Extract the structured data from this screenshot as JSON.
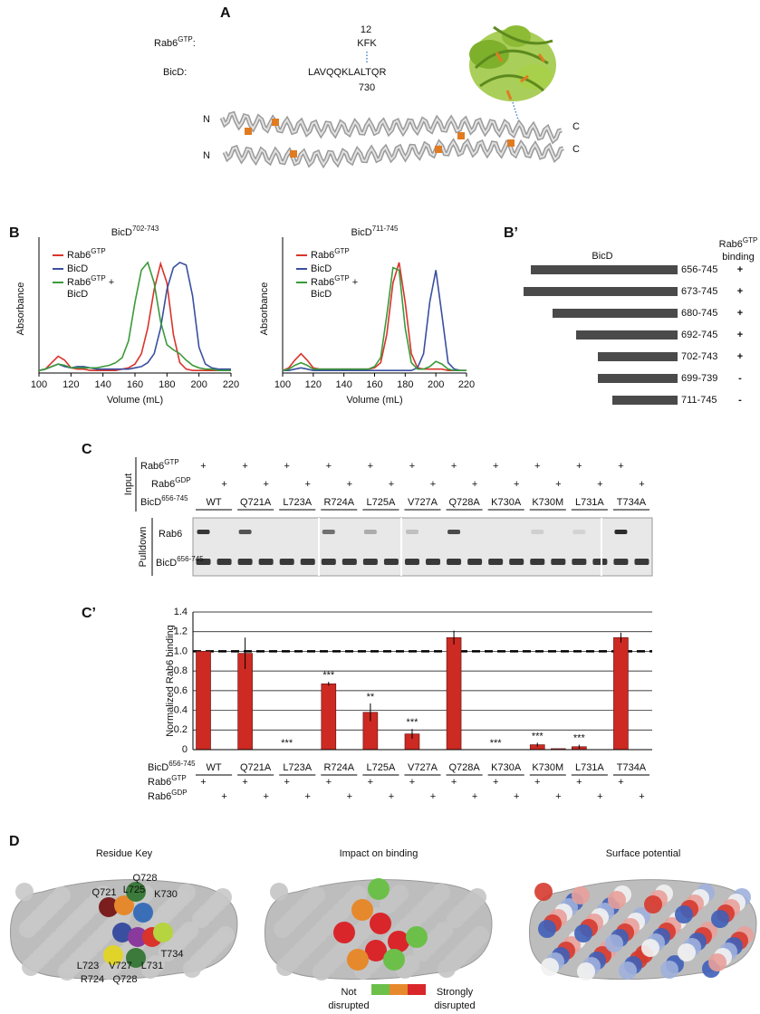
{
  "panel_a": {
    "label": "A",
    "rab6": {
      "text": "Rab6",
      "sup": "GTP"
    },
    "colon": ":",
    "rab6_residue": 12,
    "rab6_seq": "KFK",
    "bicd": "BicD:",
    "bicd_seq": "LAVQQKLALTQR",
    "bicd_residue": 730,
    "termini": [
      "N",
      "N",
      "C",
      "C"
    ]
  },
  "panel_b": {
    "label": "B"
  },
  "chart_data": [
    {
      "type": "line",
      "title": {
        "text": "BicD",
        "sup": "702-743"
      },
      "xlabel": "Volume (mL)",
      "ylabel": "Absorbance",
      "x": [
        100,
        104,
        108,
        112,
        116,
        120,
        124,
        128,
        132,
        136,
        140,
        144,
        148,
        152,
        156,
        160,
        164,
        168,
        172,
        176,
        180,
        184,
        188,
        192,
        196,
        200,
        204,
        208,
        212,
        216,
        220
      ],
      "xlim": [
        100,
        220
      ],
      "xticks": [
        100,
        120,
        140,
        160,
        180,
        200,
        220
      ],
      "ylim": [
        0,
        1
      ],
      "series": [
        {
          "name": {
            "text": "Rab6",
            "sup": "GTP"
          },
          "color": "#d9342b",
          "values": [
            0.02,
            0.03,
            0.08,
            0.13,
            0.1,
            0.04,
            0.03,
            0.03,
            0.02,
            0.02,
            0.02,
            0.02,
            0.02,
            0.03,
            0.04,
            0.07,
            0.15,
            0.35,
            0.65,
            0.85,
            0.7,
            0.3,
            0.08,
            0.03,
            0.02,
            0.02,
            0.02,
            0.02,
            0.02,
            0.02,
            0.02
          ]
        },
        {
          "name": {
            "text": "BicD"
          },
          "color": "#3a4fa0",
          "values": [
            0.02,
            0.03,
            0.05,
            0.07,
            0.05,
            0.04,
            0.05,
            0.05,
            0.04,
            0.03,
            0.03,
            0.03,
            0.03,
            0.03,
            0.03,
            0.04,
            0.05,
            0.08,
            0.15,
            0.35,
            0.65,
            0.82,
            0.86,
            0.84,
            0.6,
            0.2,
            0.07,
            0.04,
            0.03,
            0.03,
            0.03
          ]
        },
        {
          "name": {
            "text": "Rab6",
            "sup": "GTP",
            "suffix": " +",
            "line2": "BicD"
          },
          "color": "#3b9a3b",
          "values": [
            0.02,
            0.03,
            0.05,
            0.07,
            0.06,
            0.04,
            0.04,
            0.04,
            0.04,
            0.04,
            0.05,
            0.06,
            0.08,
            0.12,
            0.25,
            0.55,
            0.8,
            0.86,
            0.7,
            0.4,
            0.22,
            0.18,
            0.15,
            0.1,
            0.06,
            0.04,
            0.03,
            0.03,
            0.02,
            0.02,
            0.02
          ]
        }
      ]
    },
    {
      "type": "line",
      "title": {
        "text": "BicD",
        "sup": "711-745"
      },
      "xlabel": "Volume (mL)",
      "ylabel": "Absorbance",
      "x": [
        100,
        104,
        108,
        112,
        116,
        120,
        124,
        128,
        132,
        136,
        140,
        144,
        148,
        152,
        156,
        160,
        164,
        168,
        172,
        176,
        180,
        184,
        188,
        192,
        196,
        200,
        204,
        208,
        212,
        216,
        220
      ],
      "xlim": [
        100,
        220
      ],
      "xticks": [
        100,
        120,
        140,
        160,
        180,
        200,
        220
      ],
      "ylim": [
        0,
        1
      ],
      "series": [
        {
          "name": {
            "text": "Rab6",
            "sup": "GTP"
          },
          "color": "#d9342b",
          "values": [
            0.02,
            0.04,
            0.1,
            0.15,
            0.1,
            0.04,
            0.03,
            0.03,
            0.03,
            0.03,
            0.03,
            0.03,
            0.03,
            0.03,
            0.03,
            0.04,
            0.08,
            0.3,
            0.7,
            0.86,
            0.55,
            0.15,
            0.04,
            0.03,
            0.03,
            0.03,
            0.03,
            0.02,
            0.02,
            0.02,
            0.02
          ]
        },
        {
          "name": {
            "text": "BicD"
          },
          "color": "#3a4fa0",
          "values": [
            0.02,
            0.02,
            0.03,
            0.04,
            0.03,
            0.02,
            0.02,
            0.02,
            0.02,
            0.02,
            0.02,
            0.02,
            0.02,
            0.02,
            0.02,
            0.02,
            0.02,
            0.02,
            0.02,
            0.02,
            0.02,
            0.02,
            0.04,
            0.15,
            0.55,
            0.8,
            0.45,
            0.08,
            0.03,
            0.02,
            0.02
          ]
        },
        {
          "name": {
            "text": "Rab6",
            "sup": "GTP",
            "suffix": " +",
            "line2": "BicD"
          },
          "color": "#3b9a3b",
          "values": [
            0.02,
            0.03,
            0.06,
            0.08,
            0.06,
            0.03,
            0.03,
            0.03,
            0.03,
            0.03,
            0.03,
            0.03,
            0.03,
            0.03,
            0.03,
            0.05,
            0.12,
            0.45,
            0.82,
            0.8,
            0.35,
            0.08,
            0.03,
            0.03,
            0.05,
            0.09,
            0.07,
            0.03,
            0.02,
            0.02,
            0.02
          ]
        }
      ]
    },
    {
      "type": "bar",
      "label": "C’",
      "ylabel": "Normalized Rab6 binding",
      "categories": [
        "WT",
        "Q721A",
        "L723A",
        "R724A",
        "L725A",
        "V727A",
        "Q728A",
        "K730A",
        "K730M",
        "L731A",
        "T734A"
      ],
      "series": [
        {
          "color": "#cc2a22",
          "values": [
            1,
            0.98,
            0,
            0.67,
            0.38,
            0.16,
            1.14,
            0,
            0.05,
            0.03,
            1.14
          ],
          "errors": [
            0,
            0.16,
            0,
            0.02,
            0.09,
            0.05,
            0.07,
            0,
            0.02,
            0.02,
            0.05
          ]
        },
        {
          "color": "#cc2a22",
          "values": [
            0,
            0,
            0,
            0,
            0,
            0,
            0,
            0,
            0.01,
            0,
            0
          ]
        }
      ],
      "significance": [
        null,
        null,
        "***",
        "***",
        "**",
        "***",
        null,
        "***",
        "***",
        "***",
        null
      ],
      "ylim": [
        0,
        1.4
      ],
      "yticks": [
        0,
        0.2,
        0.4,
        0.6,
        0.8,
        {
          "value": 1,
          "label": "1.0"
        },
        1.2,
        1.4
      ],
      "grid": true,
      "reference_line": 1,
      "row_labels": [
        {
          "text": "BicD",
          "sup": "656-745"
        },
        {
          "text": "Rab6",
          "sup": "GTP"
        },
        {
          "text": "Rab6",
          "sup": "GDP"
        }
      ],
      "plus": "+"
    }
  ],
  "panel_b_prime": {
    "label": "B’",
    "header": "BicD",
    "binding_header": {
      "text": "Rab6",
      "sup": "GTP",
      "line2": "binding"
    },
    "constructs": [
      {
        "range": "656-745",
        "binding": "+"
      },
      {
        "range": "673-745",
        "binding": "+"
      },
      {
        "range": "680-745",
        "binding": "+"
      },
      {
        "range": "692-745",
        "binding": "+"
      },
      {
        "range": "702-743",
        "binding": "+"
      },
      {
        "range": "699-739",
        "binding": "-"
      },
      {
        "range": "711-745",
        "binding": "-"
      }
    ]
  },
  "panel_c": {
    "label": "C",
    "input_label": "Input",
    "pulldown_label": "Pulldown",
    "input_rows": [
      {
        "text": "Rab6",
        "sup": "GTP"
      },
      {
        "text": "Rab6",
        "sup": "GDP"
      },
      {
        "text": "BicD",
        "sup": "656-745"
      }
    ],
    "lanes": [
      "WT",
      "Q721A",
      "L723A",
      "R724A",
      "L725A",
      "V727A",
      "Q728A",
      "K730A",
      "K730M",
      "L731A",
      "T734A"
    ],
    "plus": "+",
    "pulldown_rows": [
      {
        "text": "Rab6"
      },
      {
        "text": "BicD",
        "sup": "656-745"
      }
    ]
  },
  "panel_d": {
    "label": "D",
    "titles": [
      "Residue Key",
      "Impact on binding",
      "Surface potential"
    ],
    "residues": [
      {
        "text": "Q728",
        "color": "#3b7a3b"
      },
      {
        "text": "Q721",
        "color": "#9c2a2a"
      },
      {
        "text": "L725",
        "color": "#d9822b"
      },
      {
        "text": "K730",
        "color": "#3a6fb8"
      },
      {
        "text": "T734",
        "color": "#8cbf3f"
      },
      {
        "text": "L723",
        "color": "#3a4fa0"
      },
      {
        "text": "V727",
        "color": "#8a3a9c"
      },
      {
        "text": "L731",
        "color": "#d9342b"
      },
      {
        "text": "R724",
        "color": "#b8a82b"
      },
      {
        "text": "Q728",
        "color": "#3b7a3b"
      }
    ],
    "legend": {
      "left": [
        "Not",
        "disrupted"
      ],
      "right": [
        "Strongly",
        "disrupted"
      ],
      "colors": [
        "#6cc04a",
        "#e6892c",
        "#d9262b"
      ]
    }
  }
}
